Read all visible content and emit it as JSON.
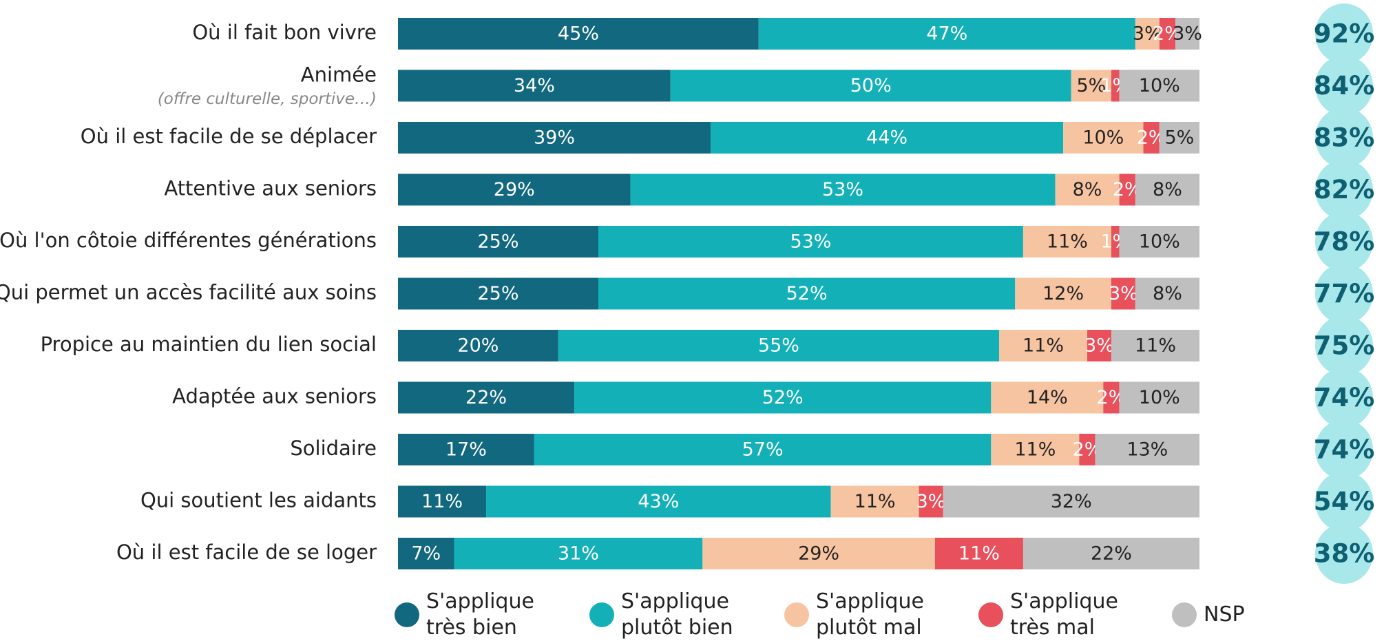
{
  "chart_data": {
    "type": "stacked_bar_horizontal",
    "categories": [
      "Où il fait bon vivre",
      "Animée",
      "Où il est facile de se déplacer",
      "Attentive aux seniors",
      "Où l'on côtoie différentes générations",
      "Qui permet un accès facilité aux soins",
      "Propice au maintien du lien social",
      "Adaptée aux seniors",
      "Solidaire",
      "Qui soutient les aidants",
      "Où il est facile de se loger"
    ],
    "annotations": [
      {
        "category": "Animée",
        "text": "(offre culturelle, sportive…)"
      }
    ],
    "xlim": [
      0,
      100
    ],
    "series": [
      {
        "name": "S'applique très bien",
        "color": "#11687f",
        "label_color": "#ffffff",
        "values": [
          45,
          34,
          39,
          29,
          25,
          25,
          20,
          22,
          17,
          11,
          7
        ],
        "value_labels": [
          "45%",
          "34%",
          "39%",
          "29%",
          "25%",
          "25%",
          "20%",
          "22%",
          "17%",
          "11%",
          "7%"
        ]
      },
      {
        "name": "S'applique plutôt bien",
        "color": "#14b0b8",
        "label_color": "#ffffff",
        "values": [
          47,
          50,
          44,
          53,
          53,
          52,
          55,
          52,
          57,
          43,
          31
        ],
        "value_labels": [
          "47%",
          "50%",
          "44%",
          "53%",
          "53%",
          "52%",
          "55%",
          "52%",
          "57%",
          "43%",
          "31%"
        ]
      },
      {
        "name": "S'applique plutôt mal",
        "color": "#f7c4a1",
        "label_color": "#222222",
        "values": [
          3,
          5,
          10,
          8,
          11,
          12,
          11,
          14,
          11,
          11,
          29
        ],
        "value_labels": [
          "3%",
          "5%",
          "10%",
          "8%",
          "11%",
          "12%",
          "11%",
          "14%",
          "11%",
          "11%",
          "29%"
        ]
      },
      {
        "name": "S'applique très mal",
        "color": "#e8505b",
        "label_color": "#ffffff",
        "values": [
          2,
          1,
          2,
          2,
          1,
          3,
          3,
          2,
          2,
          3,
          11
        ],
        "value_labels": [
          "2%",
          "1%",
          "2%",
          "2%",
          "1%",
          "3%",
          "3%",
          "2%",
          "2%",
          "3%",
          "11%"
        ]
      },
      {
        "name": "NSP",
        "color": "#bfbfbf",
        "label_color": "#222222",
        "values": [
          3,
          10,
          5,
          8,
          10,
          8,
          11,
          10,
          13,
          32,
          22
        ],
        "value_labels": [
          "3%",
          "10%",
          "5%",
          "8%",
          "10%",
          "8%",
          "11%",
          "10%",
          "13%",
          "32%",
          "22%"
        ]
      }
    ],
    "totals": {
      "color": "#a9e8ea",
      "label_color": "#0f5f73",
      "values": [
        92,
        84,
        83,
        82,
        78,
        77,
        75,
        74,
        74,
        54,
        38
      ],
      "value_labels": [
        "92%",
        "84%",
        "83%",
        "82%",
        "78%",
        "77%",
        "75%",
        "74%",
        "74%",
        "54%",
        "38%"
      ]
    }
  }
}
